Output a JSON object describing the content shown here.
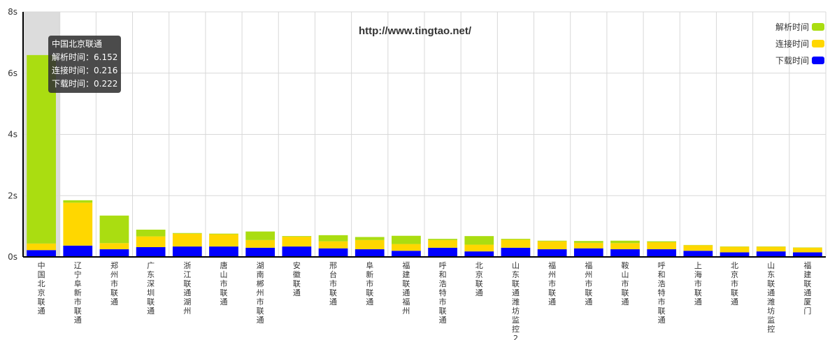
{
  "watermark": "http://www.tingtao.net/",
  "chart_data": {
    "type": "bar",
    "stacked": true,
    "title": "",
    "xlabel": "",
    "ylabel": "",
    "ylim": [
      0,
      8
    ],
    "yticks": [
      "0s",
      "2s",
      "4s",
      "6s",
      "8s"
    ],
    "grid": true,
    "legend_position": "top-right",
    "categories": [
      "中国北京联通",
      "辽宁阜新市联通",
      "郑州市联通",
      "广东深圳联通",
      "浙江联通湖州",
      "唐山市联通",
      "湖南郴州市联通",
      "安徽联通",
      "邢台市联通",
      "阜新市联通",
      "福建联通福州",
      "呼和浩特市联通",
      "北京联通",
      "山东联通潍坊监控2",
      "福州市联通",
      "福州市联通",
      "鞍山市联通",
      "呼和浩特市联通",
      "上海市联通",
      "北京市联通",
      "山东联通潍坊监控",
      "福建联通厦门"
    ],
    "series": [
      {
        "name": "下载时间",
        "color": "#0000ff",
        "values": [
          0.222,
          0.37,
          0.25,
          0.32,
          0.34,
          0.34,
          0.3,
          0.34,
          0.28,
          0.25,
          0.2,
          0.3,
          0.18,
          0.3,
          0.25,
          0.28,
          0.25,
          0.25,
          0.2,
          0.15,
          0.18,
          0.15
        ]
      },
      {
        "name": "连接时间",
        "color": "#ffd700",
        "values": [
          0.216,
          1.4,
          0.2,
          0.35,
          0.42,
          0.4,
          0.25,
          0.32,
          0.23,
          0.3,
          0.22,
          0.25,
          0.22,
          0.26,
          0.26,
          0.18,
          0.2,
          0.23,
          0.18,
          0.18,
          0.15,
          0.15
        ]
      },
      {
        "name": "解析时间",
        "color": "#aadd11",
        "values": [
          6.152,
          0.08,
          0.9,
          0.22,
          0.02,
          0.02,
          0.28,
          0.02,
          0.2,
          0.1,
          0.27,
          0.04,
          0.28,
          0.03,
          0.02,
          0.06,
          0.08,
          0.03,
          0.01,
          0.01,
          0.01,
          0.01
        ]
      }
    ]
  },
  "tooltip": {
    "title": "中国北京联通",
    "lines": [
      "解析时间：6.152",
      "连接时间：0.216",
      "下载时间：0.222"
    ]
  }
}
